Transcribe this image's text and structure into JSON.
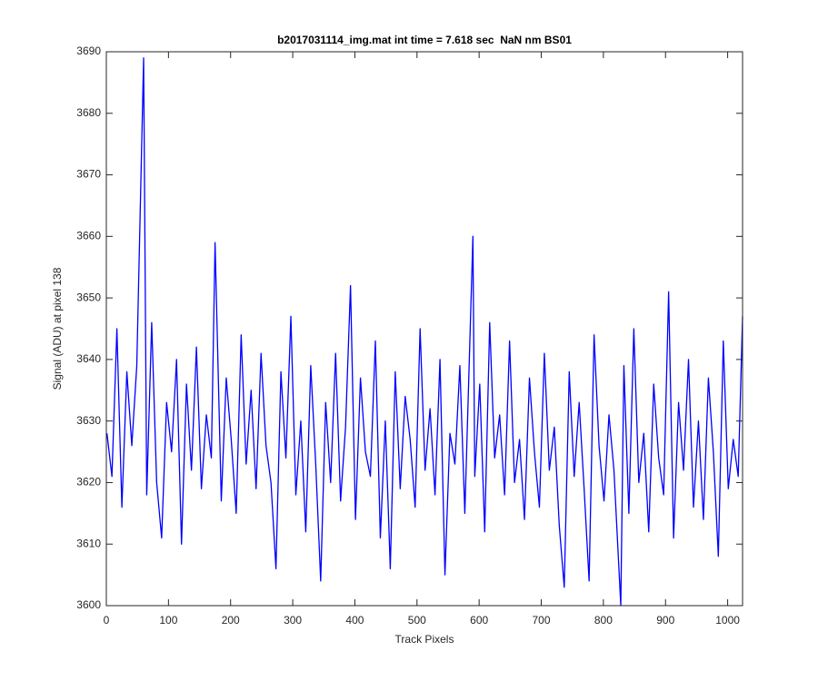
{
  "chart_data": {
    "type": "line",
    "title": "b2017031114_img.mat int time = 7.618 sec  NaN nm BS01",
    "x_label": "Track Pixels",
    "y_label": "Signal (ADU) at pixel 138",
    "xlim": [
      0,
      1024
    ],
    "ylim": [
      3600,
      3690
    ],
    "xticks": [
      0,
      100,
      200,
      300,
      400,
      500,
      600,
      700,
      800,
      900,
      1000
    ],
    "yticks": [
      3600,
      3610,
      3620,
      3630,
      3640,
      3650,
      3660,
      3670,
      3680,
      3690
    ],
    "grid": false,
    "x": [
      1,
      9,
      17,
      25,
      33,
      41,
      49,
      60,
      65,
      73,
      81,
      89,
      97,
      105,
      113,
      121,
      129,
      137,
      145,
      153,
      161,
      169,
      175,
      185,
      193,
      201,
      209,
      217,
      225,
      233,
      241,
      249,
      257,
      265,
      273,
      281,
      289,
      297,
      305,
      313,
      321,
      329,
      337,
      345,
      353,
      361,
      369,
      377,
      385,
      393,
      401,
      409,
      417,
      425,
      433,
      441,
      449,
      457,
      465,
      473,
      481,
      489,
      497,
      505,
      513,
      521,
      529,
      537,
      545,
      553,
      561,
      569,
      577,
      590,
      593,
      601,
      609,
      617,
      625,
      633,
      641,
      649,
      657,
      665,
      673,
      681,
      689,
      697,
      705,
      713,
      721,
      729,
      737,
      745,
      753,
      761,
      769,
      777,
      785,
      793,
      801,
      809,
      817,
      828,
      833,
      841,
      849,
      857,
      865,
      873,
      881,
      889,
      897,
      905,
      913,
      921,
      929,
      937,
      945,
      953,
      961,
      969,
      977,
      985,
      993,
      1001,
      1009,
      1017,
      1024
    ],
    "series": [
      {
        "color": "#0000ff",
        "values": [
          3628,
          3621,
          3645,
          3616,
          3638,
          3626,
          3639,
          3689,
          3618,
          3646,
          3620,
          3611,
          3633,
          3625,
          3640,
          3610,
          3636,
          3622,
          3642,
          3619,
          3631,
          3624,
          3659,
          3617,
          3637,
          3627,
          3615,
          3644,
          3623,
          3635,
          3619,
          3641,
          3626,
          3620,
          3606,
          3638,
          3624,
          3647,
          3618,
          3630,
          3612,
          3639,
          3623,
          3604,
          3633,
          3620,
          3641,
          3617,
          3629,
          3652,
          3614,
          3637,
          3625,
          3621,
          3643,
          3611,
          3630,
          3606,
          3638,
          3619,
          3634,
          3627,
          3616,
          3645,
          3622,
          3632,
          3618,
          3640,
          3605,
          3628,
          3623,
          3639,
          3615,
          3660,
          3621,
          3636,
          3612,
          3646,
          3624,
          3631,
          3618,
          3643,
          3620,
          3627,
          3614,
          3637,
          3625,
          3616,
          3641,
          3622,
          3629,
          3613,
          3603,
          3638,
          3621,
          3633,
          3619,
          3604,
          3644,
          3626,
          3617,
          3631,
          3622,
          3600,
          3639,
          3615,
          3645,
          3620,
          3628,
          3612,
          3636,
          3624,
          3618,
          3651,
          3611,
          3633,
          3622,
          3640,
          3616,
          3630,
          3614,
          3637,
          3625,
          3608,
          3643,
          3619,
          3627,
          3621,
          3647
        ]
      }
    ]
  }
}
